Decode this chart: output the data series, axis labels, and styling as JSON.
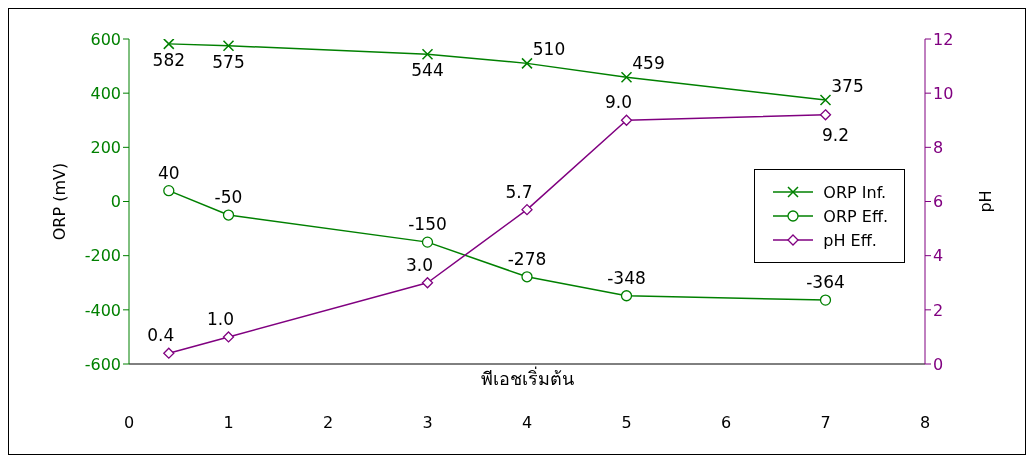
{
  "chart_data": {
    "type": "line",
    "xlabel": "พีเอชเริ่มต้น",
    "ylabel": "ORP (mV)",
    "y2label": "pH",
    "x": [
      0.4,
      1,
      3,
      4,
      5,
      7
    ],
    "series": [
      {
        "name": "ORP Inf.",
        "color": "#008000",
        "marker": "cross",
        "values": [
          582,
          575,
          544,
          510,
          459,
          375
        ]
      },
      {
        "name": "ORP Eff.",
        "color": "#008000",
        "marker": "circle",
        "values": [
          40,
          -50,
          -150,
          -278,
          -348,
          -364
        ]
      },
      {
        "name": "pH Eff.",
        "color": "#800080",
        "marker": "diamond",
        "axis": "y2",
        "value_labels": [
          "0.4",
          "1.0",
          "3.0",
          "5.7",
          "9.0",
          "9.2"
        ],
        "values": [
          0.4,
          1.0,
          3.0,
          5.7,
          9.0,
          9.2
        ]
      }
    ],
    "xlim": [
      0,
      8
    ],
    "xticks": [
      0,
      1,
      2,
      3,
      4,
      5,
      6,
      7,
      8
    ],
    "ylim": [
      -600,
      600
    ],
    "yticks": [
      -600,
      -400,
      -200,
      0,
      200,
      400,
      600
    ],
    "y2lim": [
      0,
      12
    ],
    "y2ticks": [
      0,
      2,
      4,
      6,
      8,
      10,
      12
    ],
    "data_labels": true,
    "legend": "right"
  }
}
